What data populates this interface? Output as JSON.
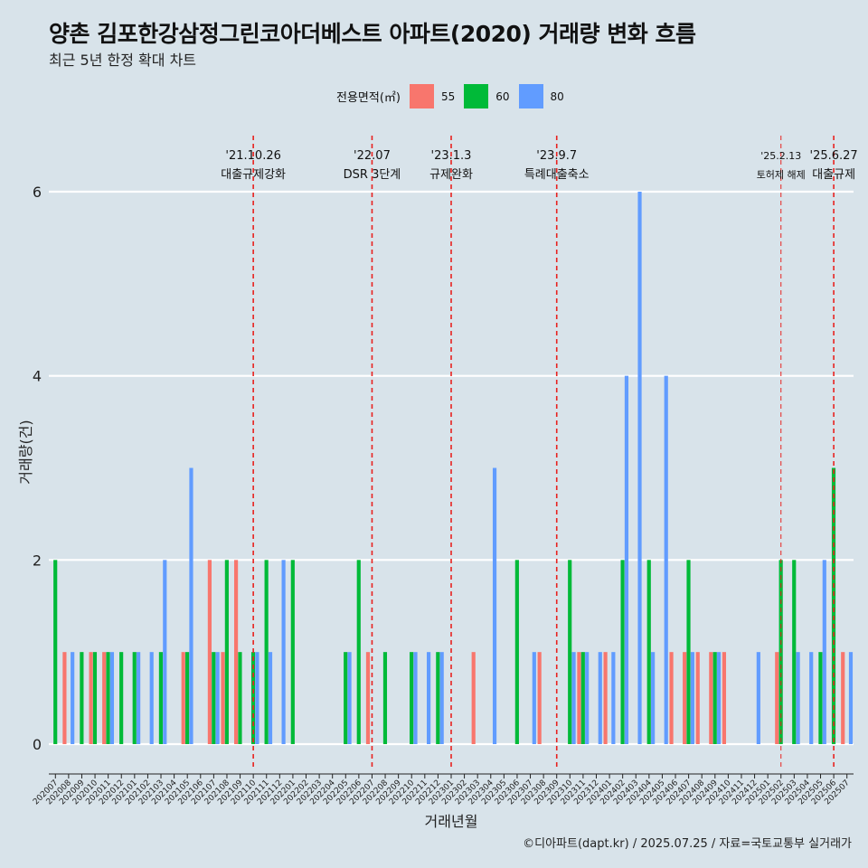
{
  "title": "양촌 김포한강삼정그린코아더베스트 아파트(2020) 거래량 변화 흐름",
  "subtitle": "최근 5년 한정 확대 차트",
  "caption": "©디아파트(dapt.kr) / 2025.07.25 / 자료=국토교통부 실거래가",
  "legend": {
    "title": "전용면적(㎡)",
    "items": [
      {
        "label": "55",
        "color": "#f8766d"
      },
      {
        "label": "60",
        "color": "#00ba38"
      },
      {
        "label": "80",
        "color": "#619cff"
      }
    ]
  },
  "chart_data": {
    "type": "bar",
    "xlabel": "거래년월",
    "ylabel": "거래량(건)",
    "ylim": [
      0,
      6
    ],
    "yticks": [
      0,
      2,
      4,
      6
    ],
    "grid": true,
    "legend_position": "top",
    "categories": [
      "202007",
      "202008",
      "202009",
      "202010",
      "202011",
      "202012",
      "202101",
      "202102",
      "202103",
      "202104",
      "202105",
      "202106",
      "202107",
      "202108",
      "202109",
      "202110",
      "202111",
      "202112",
      "202201",
      "202202",
      "202203",
      "202204",
      "202205",
      "202206",
      "202207",
      "202208",
      "202209",
      "202210",
      "202211",
      "202212",
      "202301",
      "202302",
      "202303",
      "202304",
      "202305",
      "202306",
      "202307",
      "202308",
      "202309",
      "202310",
      "202311",
      "202312",
      "202401",
      "202402",
      "202403",
      "202404",
      "202405",
      "202406",
      "202407",
      "202408",
      "202409",
      "202410",
      "202411",
      "202412",
      "202501",
      "202502",
      "202503",
      "202504",
      "202505",
      "202506",
      "202507"
    ],
    "series": [
      {
        "name": "55",
        "values": [
          0,
          1,
          0,
          1,
          1,
          0,
          0,
          0,
          0,
          0,
          1,
          0,
          2,
          1,
          2,
          0,
          0,
          0,
          0,
          0,
          0,
          0,
          0,
          0,
          1,
          0,
          0,
          0,
          0,
          0,
          0,
          0,
          1,
          0,
          0,
          0,
          0,
          1,
          0,
          0,
          1,
          0,
          1,
          0,
          0,
          0,
          0,
          1,
          1,
          1,
          1,
          1,
          0,
          0,
          0,
          1,
          0,
          0,
          0,
          0,
          1
        ]
      },
      {
        "name": "60",
        "values": [
          2,
          0,
          1,
          1,
          1,
          1,
          1,
          0,
          1,
          0,
          1,
          0,
          1,
          2,
          1,
          1,
          2,
          0,
          2,
          0,
          0,
          0,
          1,
          2,
          0,
          1,
          0,
          1,
          0,
          1,
          0,
          0,
          0,
          0,
          0,
          2,
          0,
          0,
          0,
          2,
          1,
          0,
          0,
          2,
          0,
          2,
          0,
          0,
          2,
          0,
          1,
          0,
          0,
          0,
          0,
          2,
          2,
          0,
          1,
          3,
          0
        ]
      },
      {
        "name": "80",
        "values": [
          0,
          1,
          0,
          0,
          1,
          0,
          1,
          1,
          2,
          0,
          3,
          0,
          1,
          0,
          0,
          1,
          1,
          2,
          0,
          0,
          0,
          0,
          1,
          0,
          0,
          0,
          0,
          1,
          1,
          1,
          0,
          0,
          0,
          3,
          0,
          0,
          1,
          0,
          0,
          1,
          1,
          1,
          1,
          4,
          6,
          1,
          4,
          0,
          1,
          0,
          1,
          0,
          0,
          1,
          0,
          0,
          1,
          1,
          2,
          0,
          1
        ]
      }
    ],
    "annotations": [
      {
        "x": "202110",
        "date": "'21.10.26",
        "label": "대출규제강화",
        "style": "dashed"
      },
      {
        "x": "202207",
        "date": "'22.07",
        "label": "DSR 3단계",
        "style": "dashed"
      },
      {
        "x": "202301",
        "date": "'23.1.3",
        "label": "규제완화",
        "style": "dashed"
      },
      {
        "x": "202309",
        "date": "'23.9.7",
        "label": "특례대출축소",
        "style": "dashed"
      },
      {
        "x": "202502",
        "date": "'25.2.13",
        "label": "토허제 해제",
        "style": "dashed-thin"
      },
      {
        "x": "202506",
        "date": "'25.6.27",
        "label": "대출규제",
        "style": "dashed"
      }
    ]
  }
}
